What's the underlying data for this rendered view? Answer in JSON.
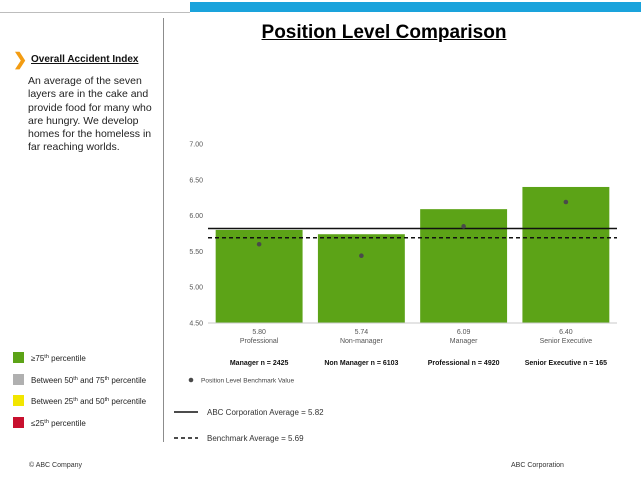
{
  "header": {
    "title": "Position Level Comparison"
  },
  "sidebar": {
    "heading": "Overall Accident Index",
    "description": "An average of the seven layers are in the cake and provide food for many who are hungry.  We develop homes for the homeless in far reaching worlds."
  },
  "legend": [
    {
      "lead": "≥75",
      "sup": "th",
      "rest": " percentile",
      "color": "#5ca317"
    },
    {
      "lead": "Between 50",
      "sup": "th",
      "rest": " and 75",
      "sup2": "th",
      "rest2": " percentile",
      "color": "#b0b0b0"
    },
    {
      "lead": "Between 25",
      "sup": "th",
      "rest": " and 50",
      "sup2": "th",
      "rest2": " percentile",
      "color": "#f2e600"
    },
    {
      "lead": "≤25",
      "sup": "th",
      "rest": " percentile",
      "color": "#c8102e"
    }
  ],
  "chart_data": {
    "type": "bar",
    "title": "Position Level Comparison",
    "categories": [
      "Professional",
      "Non-manager",
      "Manager",
      "Senior Executive"
    ],
    "values": [
      5.8,
      5.74,
      6.09,
      6.4
    ],
    "value_labels": [
      "5.80",
      "5.74",
      "6.09",
      "6.40"
    ],
    "benchmark_name": "Position Level Benchmark Value",
    "benchmark_points": [
      5.6,
      5.44,
      5.85,
      6.19
    ],
    "sample_labels": [
      "Manager n = 2425",
      "Non Manager n = 6103",
      "Professional n = 4920",
      "Senior Executive n = 165"
    ],
    "ylim": [
      4.5,
      7.0
    ],
    "yticks": [
      "4.50",
      "5.00",
      "5.50",
      "6.00",
      "6.50",
      "7.00"
    ],
    "bar_color": "#5ca317",
    "reference_lines": [
      {
        "label": "ABC Corporation Average = 5.82",
        "value": 5.82,
        "style": "solid"
      },
      {
        "label": "Benchmark  Average = 5.69",
        "value": 5.69,
        "style": "dashed"
      }
    ]
  },
  "footer": {
    "left": "©  ABC Company",
    "right": "ABC Corporation"
  }
}
